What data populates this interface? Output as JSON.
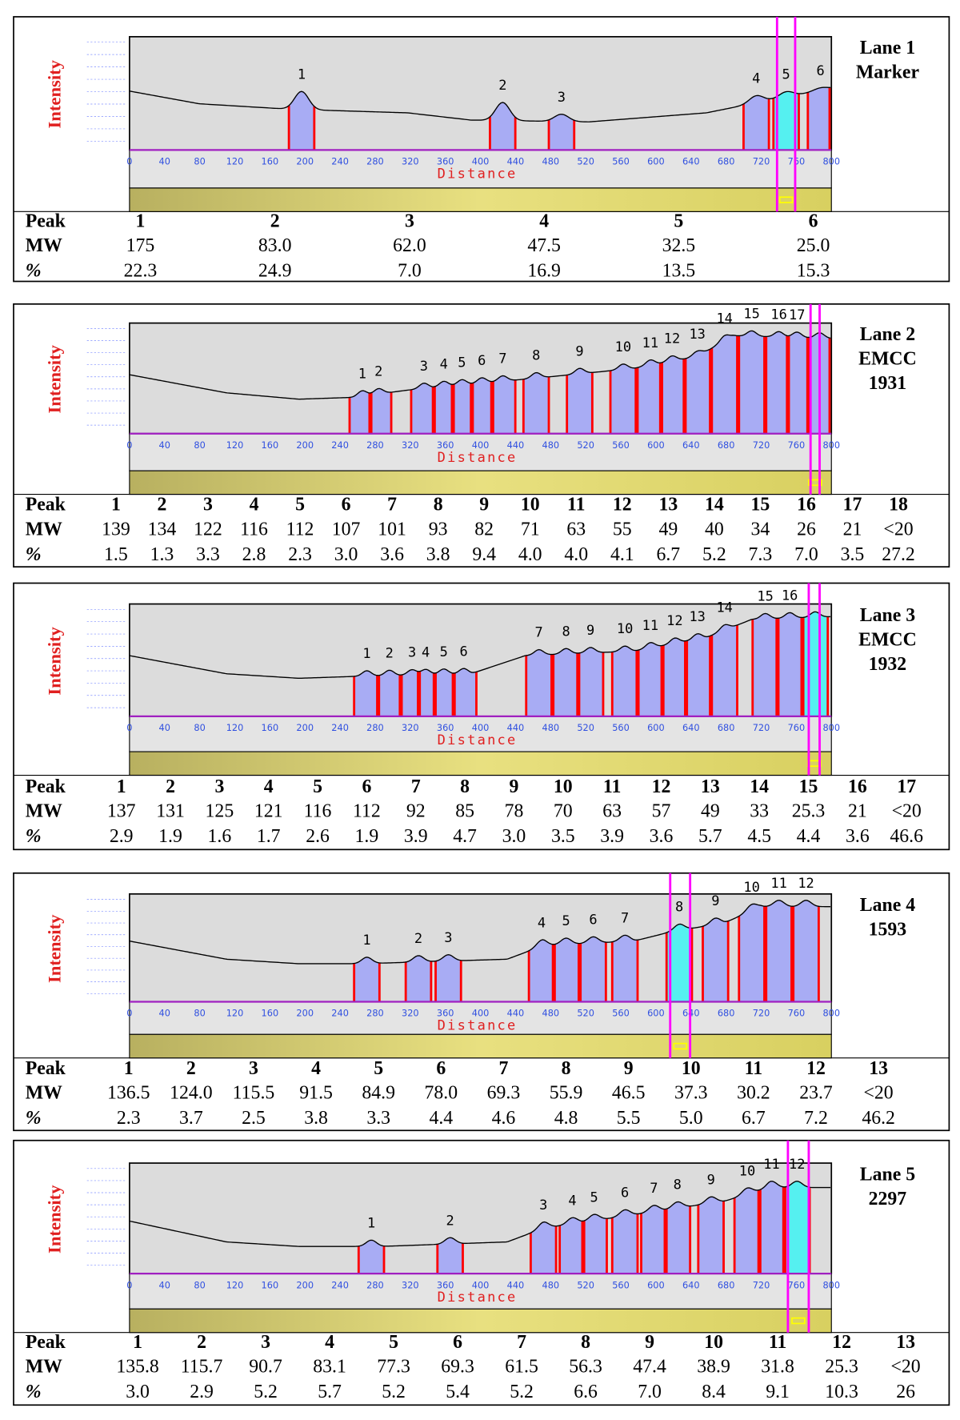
{
  "axis_labels": {
    "y": "Intensity",
    "x": "Distance"
  },
  "x_tick_labels": [
    "0",
    "40",
    "80",
    "120",
    "160",
    "200",
    "240",
    "280",
    "320",
    "360",
    "400",
    "440",
    "480",
    "520",
    "560",
    "600",
    "640",
    "680",
    "720",
    "760",
    "800"
  ],
  "row_labels": [
    "Peak",
    "MW",
    "%"
  ],
  "lanes": [
    {
      "name": [
        "Lane 1",
        "Marker"
      ],
      "peak_labels": [
        "1",
        "2",
        "3",
        "4",
        "5",
        "6"
      ],
      "peak": [
        "1",
        "2",
        "3",
        "4",
        "5",
        "6"
      ],
      "mw": [
        "175",
        "83.0",
        "62.0",
        "47.5",
        "32.5",
        "25.0"
      ],
      "percent": [
        "22.3",
        "24.9",
        "7.0",
        "16.9",
        "13.5",
        "15.3"
      ]
    },
    {
      "name": [
        "Lane 2",
        "EMCC",
        "1931"
      ],
      "peak_labels": [
        "1",
        "2",
        "3",
        "4",
        "5",
        "6",
        "7",
        "8",
        "9",
        "10",
        "11",
        "12",
        "13",
        "14",
        "15",
        "16",
        "17"
      ],
      "peak": [
        "1",
        "2",
        "3",
        "4",
        "5",
        "6",
        "7",
        "8",
        "9",
        "10",
        "11",
        "12",
        "13",
        "14",
        "15",
        "16",
        "17",
        "18"
      ],
      "mw": [
        "139",
        "134",
        "122",
        "116",
        "112",
        "107",
        "101",
        "93",
        "82",
        "71",
        "63",
        "55",
        "49",
        "40",
        "34",
        "26",
        "21",
        "<20"
      ],
      "percent": [
        "1.5",
        "1.3",
        "3.3",
        "2.8",
        "2.3",
        "3.0",
        "3.6",
        "3.8",
        "9.4",
        "4.0",
        "4.0",
        "4.1",
        "6.7",
        "5.2",
        "7.3",
        "7.0",
        "3.5",
        "27.2"
      ]
    },
    {
      "name": [
        "Lane 3",
        "EMCC",
        "1932"
      ],
      "peak_labels": [
        "1",
        "2",
        "3",
        "4",
        "5",
        "6",
        "7",
        "8",
        "9",
        "10",
        "11",
        "12",
        "13",
        "14",
        "15",
        "16"
      ],
      "peak": [
        "1",
        "2",
        "3",
        "4",
        "5",
        "6",
        "7",
        "8",
        "9",
        "10",
        "11",
        "12",
        "13",
        "14",
        "15",
        "16",
        "17"
      ],
      "mw": [
        "137",
        "131",
        "125",
        "121",
        "116",
        "112",
        "92",
        "85",
        "78",
        "70",
        "63",
        "57",
        "49",
        "33",
        "25.3",
        "21",
        "<20"
      ],
      "percent": [
        "2.9",
        "1.9",
        "1.6",
        "1.7",
        "2.6",
        "1.9",
        "3.9",
        "4.7",
        "3.0",
        "3.5",
        "3.9",
        "3.6",
        "5.7",
        "4.5",
        "4.4",
        "3.6",
        "46.6"
      ]
    },
    {
      "name": [
        "Lane 4",
        "1593"
      ],
      "peak_labels": [
        "1",
        "2",
        "3",
        "4",
        "5",
        "6",
        "7",
        "8",
        "9",
        "10",
        "11",
        "12"
      ],
      "peak": [
        "1",
        "2",
        "3",
        "4",
        "5",
        "6",
        "7",
        "8",
        "9",
        "10",
        "11",
        "12",
        "13"
      ],
      "mw": [
        "136.5",
        "124.0",
        "115.5",
        "91.5",
        "84.9",
        "78.0",
        "69.3",
        "55.9",
        "46.5",
        "37.3",
        "30.2",
        "23.7",
        "<20"
      ],
      "percent": [
        "2.3",
        "3.7",
        "2.5",
        "3.8",
        "3.3",
        "4.4",
        "4.6",
        "4.8",
        "5.5",
        "5.0",
        "6.7",
        "7.2",
        "46.2"
      ]
    },
    {
      "name": [
        "Lane 5",
        "2297"
      ],
      "peak_labels": [
        "1",
        "2",
        "3",
        "4",
        "5",
        "6",
        "7",
        "8",
        "9",
        "10",
        "11",
        "12"
      ],
      "peak": [
        "1",
        "2",
        "3",
        "4",
        "5",
        "6",
        "7",
        "8",
        "9",
        "10",
        "11",
        "12",
        "13"
      ],
      "mw": [
        "135.8",
        "115.7",
        "90.7",
        "83.1",
        "77.3",
        "69.3",
        "61.5",
        "56.3",
        "47.4",
        "38.9",
        "31.8",
        "25.3",
        "<20"
      ],
      "percent": [
        "3.0",
        "2.9",
        "5.2",
        "5.7",
        "5.2",
        "5.4",
        "5.2",
        "6.6",
        "7.0",
        "8.4",
        "9.1",
        "10.3",
        "26"
      ]
    }
  ]
}
